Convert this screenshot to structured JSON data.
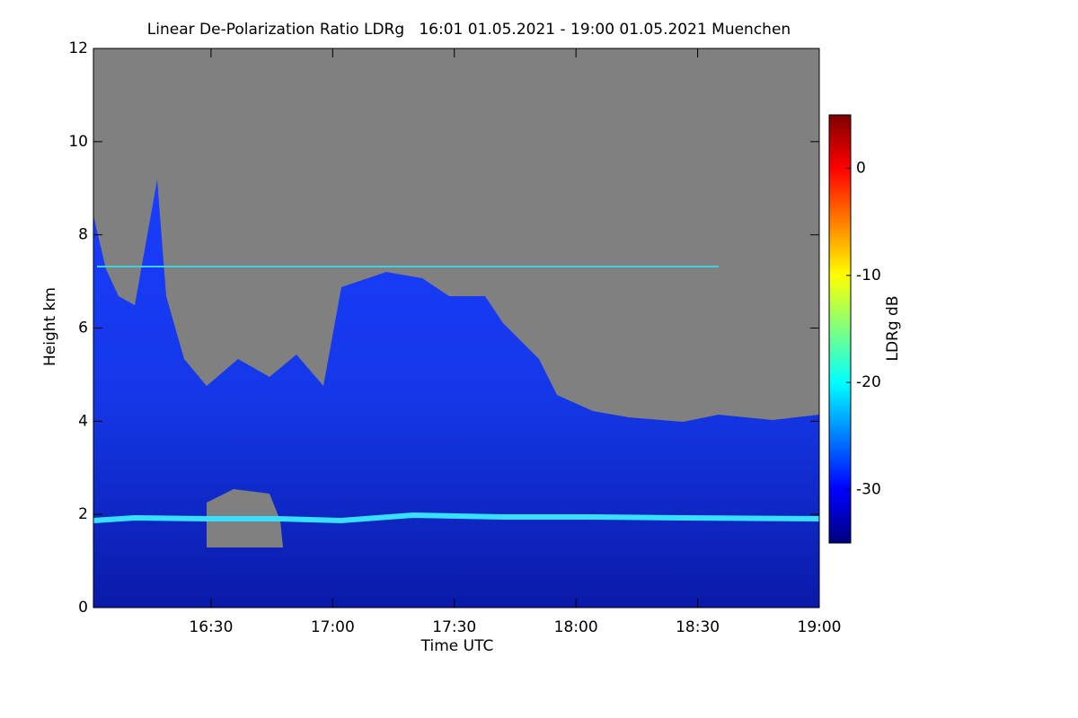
{
  "chart_data": {
    "type": "heatmap",
    "title": "Linear De-Polarization Ratio LDRg   16:01 01.05.2021 - 19:00 01.05.2021 Muenchen",
    "x_label": "Time UTC",
    "y_label": "Height km",
    "xlim": [
      16.0167,
      19.0
    ],
    "xticks": [
      {
        "value": 16.5,
        "label": "16:30"
      },
      {
        "value": 17,
        "label": "17:00"
      },
      {
        "value": 17.5,
        "label": "17:30"
      },
      {
        "value": 18,
        "label": "18:00"
      },
      {
        "value": 18.5,
        "label": "18:30"
      },
      {
        "value": 19,
        "label": "19:00"
      }
    ],
    "ylim": [
      0,
      12
    ],
    "yticks": [
      0,
      2,
      4,
      6,
      8,
      10,
      12
    ],
    "colorbar": {
      "label": "LDRg dB",
      "lim": [
        -35,
        5
      ],
      "ticks": [
        0,
        -10,
        -20,
        -30
      ],
      "colormap": "jet"
    }
  }
}
